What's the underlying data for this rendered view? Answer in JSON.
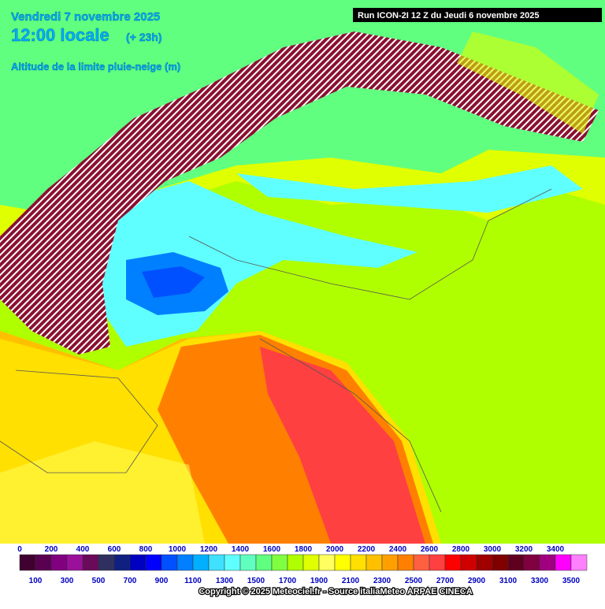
{
  "header": {
    "date": "Vendredi 7 novembre 2025",
    "time": "12:00 locale",
    "offset": "(+ 23h)",
    "parameter": "Altitude de la limite pluie-neige (m)",
    "run": "Run ICON-2I 12 Z du Jeudi 6 novembre 2025"
  },
  "legend": {
    "items": [
      {
        "value": 0,
        "color": "#400030"
      },
      {
        "value": 100,
        "color": "#5a0050"
      },
      {
        "value": 200,
        "color": "#800080"
      },
      {
        "value": 300,
        "color": "#9a109a"
      },
      {
        "value": 400,
        "color": "#6a0a5a"
      },
      {
        "value": 500,
        "color": "#303060"
      },
      {
        "value": 600,
        "color": "#102080"
      },
      {
        "value": 700,
        "color": "#0000c0"
      },
      {
        "value": 800,
        "color": "#0000ff"
      },
      {
        "value": 900,
        "color": "#0050ff"
      },
      {
        "value": 1000,
        "color": "#0080ff"
      },
      {
        "value": 1100,
        "color": "#00b0ff"
      },
      {
        "value": 1200,
        "color": "#40e0ff"
      },
      {
        "value": 1300,
        "color": "#60ffff"
      },
      {
        "value": 1400,
        "color": "#60ffc0"
      },
      {
        "value": 1500,
        "color": "#60ff80"
      },
      {
        "value": 1600,
        "color": "#80ff40"
      },
      {
        "value": 1700,
        "color": "#b0ff00"
      },
      {
        "value": 1800,
        "color": "#e0ff00"
      },
      {
        "value": 1900,
        "color": "#ffff60"
      },
      {
        "value": 2000,
        "color": "#ffff00"
      },
      {
        "value": 2100,
        "color": "#ffe000"
      },
      {
        "value": 2200,
        "color": "#ffc000"
      },
      {
        "value": 2300,
        "color": "#ffa000"
      },
      {
        "value": 2400,
        "color": "#ff8000"
      },
      {
        "value": 2500,
        "color": "#ff6040"
      },
      {
        "value": 2600,
        "color": "#ff4040"
      },
      {
        "value": 2700,
        "color": "#ff0000"
      },
      {
        "value": 2800,
        "color": "#d00000"
      },
      {
        "value": 2900,
        "color": "#a00000"
      },
      {
        "value": 3000,
        "color": "#800000"
      },
      {
        "value": 3100,
        "color": "#600020"
      },
      {
        "value": 3200,
        "color": "#800040"
      },
      {
        "value": 3300,
        "color": "#a00080"
      },
      {
        "value": 3400,
        "color": "#ff00ff"
      },
      {
        "value": 3500,
        "color": "#ff80ff"
      }
    ]
  },
  "footer": {
    "copyright": "Copyright © 2025 Meteociel.fr - Source italiaMeteo ARPAE CINECA"
  }
}
